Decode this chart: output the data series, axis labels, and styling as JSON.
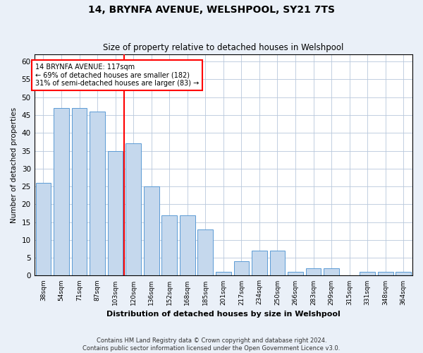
{
  "title": "14, BRYNFA AVENUE, WELSHPOOL, SY21 7TS",
  "subtitle": "Size of property relative to detached houses in Welshpool",
  "xlabel": "Distribution of detached houses by size in Welshpool",
  "ylabel": "Number of detached properties",
  "categories": [
    "38sqm",
    "54sqm",
    "71sqm",
    "87sqm",
    "103sqm",
    "120sqm",
    "136sqm",
    "152sqm",
    "168sqm",
    "185sqm",
    "201sqm",
    "217sqm",
    "234sqm",
    "250sqm",
    "266sqm",
    "283sqm",
    "299sqm",
    "315sqm",
    "331sqm",
    "348sqm",
    "364sqm"
  ],
  "values": [
    26,
    47,
    47,
    46,
    35,
    37,
    25,
    17,
    17,
    13,
    1,
    4,
    7,
    7,
    1,
    2,
    2,
    0,
    1,
    1,
    1
  ],
  "bar_color": "#c5d8ed",
  "bar_edge_color": "#5b9bd5",
  "red_line_x": 4.5,
  "annotation_line1": "14 BRYNFA AVENUE: 117sqm",
  "annotation_line2": "← 69% of detached houses are smaller (182)",
  "annotation_line3": "31% of semi-detached houses are larger (83) →",
  "ylim": [
    0,
    62
  ],
  "yticks": [
    0,
    5,
    10,
    15,
    20,
    25,
    30,
    35,
    40,
    45,
    50,
    55,
    60
  ],
  "footer1": "Contains HM Land Registry data © Crown copyright and database right 2024.",
  "footer2": "Contains public sector information licensed under the Open Government Licence v3.0.",
  "bg_color": "#eaf0f8",
  "plot_bg": "#ffffff"
}
